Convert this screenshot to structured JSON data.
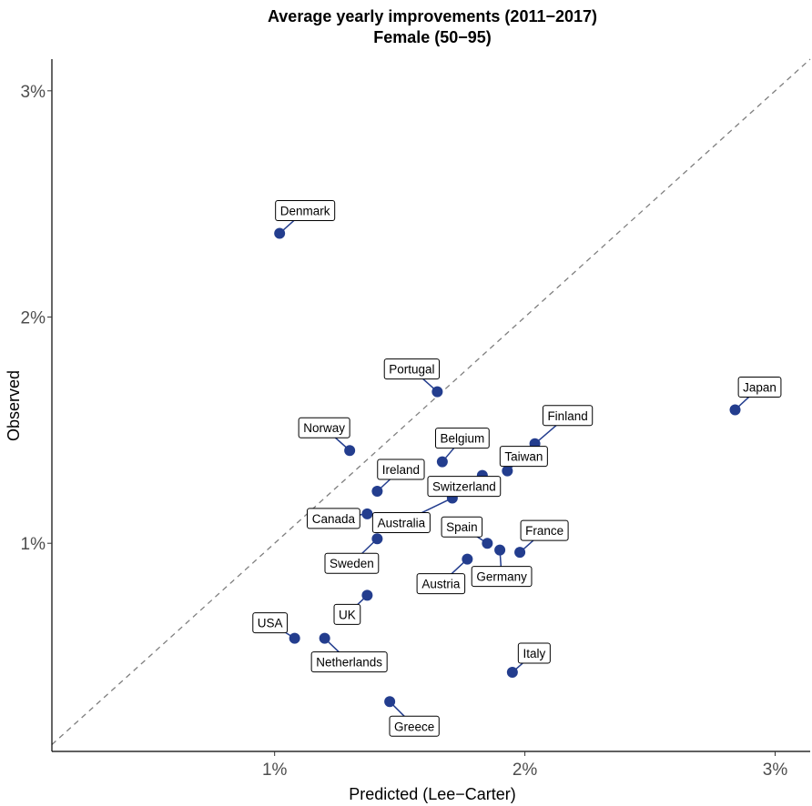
{
  "chart_data": {
    "type": "scatter",
    "title": "Average yearly improvements (2011−2017)",
    "subtitle": "Female (50−95)",
    "xlabel": "Predicted (Lee−Carter)",
    "ylabel": "Observed",
    "xlim": [
      0.0011,
      0.0314
    ],
    "ylim": [
      0.0008,
      0.0314
    ],
    "x_ticks": [
      0.01,
      0.02,
      0.03
    ],
    "x_tick_labels": [
      "1%",
      "2%",
      "3%"
    ],
    "y_ticks": [
      0.01,
      0.02,
      0.03
    ],
    "y_tick_labels": [
      "1%",
      "2%",
      "3%"
    ],
    "reference_line": "y = x",
    "point_color": "#233d8e",
    "points": [
      {
        "label": "Denmark",
        "x": 0.0102,
        "y": 0.0237
      },
      {
        "label": "Portugal",
        "x": 0.0165,
        "y": 0.0167
      },
      {
        "label": "Japan",
        "x": 0.0284,
        "y": 0.0159
      },
      {
        "label": "Finland",
        "x": 0.0204,
        "y": 0.0144
      },
      {
        "label": "Norway",
        "x": 0.013,
        "y": 0.0141
      },
      {
        "label": "Belgium",
        "x": 0.0167,
        "y": 0.0136
      },
      {
        "label": "Taiwan",
        "x": 0.0193,
        "y": 0.0132
      },
      {
        "label": "Ireland",
        "x": 0.0141,
        "y": 0.0123
      },
      {
        "label": "Switzerland",
        "x": 0.0183,
        "y": 0.013
      },
      {
        "label": "Canada",
        "x": 0.0137,
        "y": 0.0113
      },
      {
        "label": "Australia",
        "x": 0.0171,
        "y": 0.012
      },
      {
        "label": "Spain",
        "x": 0.0185,
        "y": 0.01
      },
      {
        "label": "France",
        "x": 0.0198,
        "y": 0.0096
      },
      {
        "label": "Sweden",
        "x": 0.0141,
        "y": 0.0102
      },
      {
        "label": "Germany",
        "x": 0.019,
        "y": 0.0097
      },
      {
        "label": "Austria",
        "x": 0.0177,
        "y": 0.0093
      },
      {
        "label": "UK",
        "x": 0.0137,
        "y": 0.0077
      },
      {
        "label": "USA",
        "x": 0.0108,
        "y": 0.0058
      },
      {
        "label": "Netherlands",
        "x": 0.012,
        "y": 0.0058
      },
      {
        "label": "Italy",
        "x": 0.0195,
        "y": 0.0043
      },
      {
        "label": "Greece",
        "x": 0.0146,
        "y": 0.003
      }
    ]
  }
}
